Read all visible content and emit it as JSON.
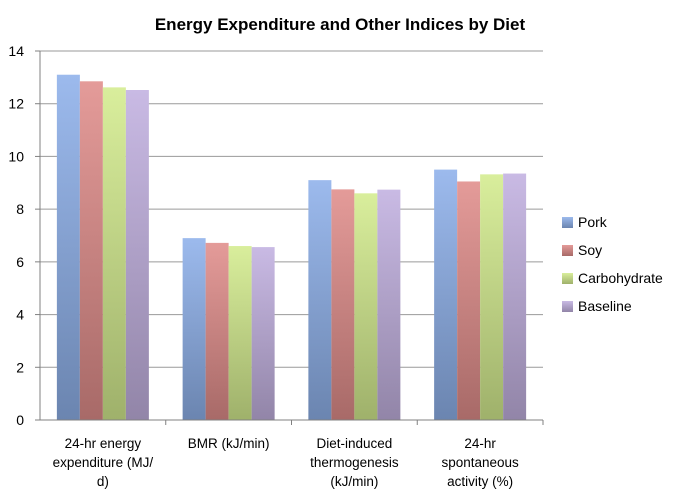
{
  "chart_data": {
    "type": "bar",
    "title": "Energy Expenditure and Other Indices by Diet",
    "categories": [
      [
        "24-hr energy",
        "expenditure (MJ/",
        "d)"
      ],
      [
        "BMR (kJ/min)"
      ],
      [
        "Diet-induced",
        "thermogenesis",
        "(kJ/min)"
      ],
      [
        "24-hr",
        "spontaneous",
        "activity (%)"
      ]
    ],
    "series": [
      {
        "name": "Pork",
        "values": [
          13.1,
          6.9,
          9.1,
          9.5
        ],
        "color": "#8fb1ea"
      },
      {
        "name": "Soy",
        "values": [
          12.85,
          6.72,
          8.75,
          9.05
        ],
        "color": "#e08d8b"
      },
      {
        "name": "Carbohydrate",
        "values": [
          12.62,
          6.6,
          8.6,
          9.32
        ],
        "color": "#d4ec8e"
      },
      {
        "name": "Baseline",
        "values": [
          12.52,
          6.56,
          8.74,
          9.35
        ],
        "color": "#c2b1e0"
      }
    ],
    "ylim": [
      0,
      14
    ],
    "yticks": [
      0,
      2,
      4,
      6,
      8,
      10,
      12,
      14
    ],
    "grid": true,
    "legend_position": "right"
  }
}
